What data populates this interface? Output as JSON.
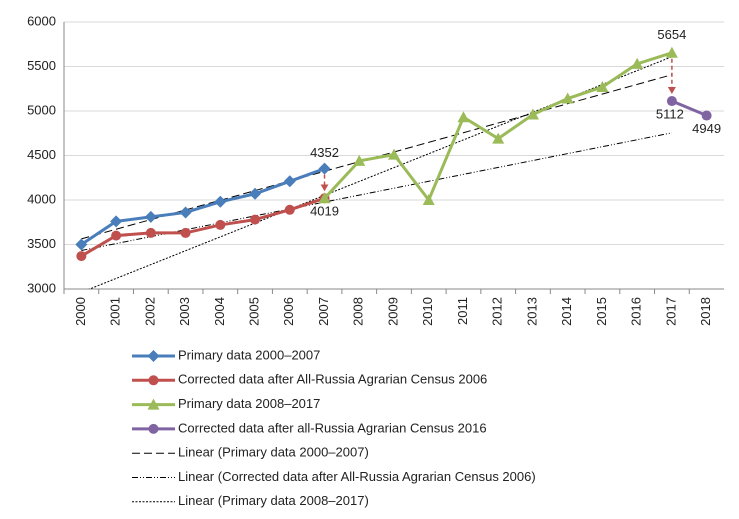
{
  "chart_data": {
    "type": "line",
    "categories": [
      "2000",
      "2001",
      "2002",
      "2003",
      "2004",
      "2005",
      "2006",
      "2007",
      "2008",
      "2009",
      "2010",
      "2011",
      "2012",
      "2013",
      "2014",
      "2015",
      "2016",
      "2017",
      "2018"
    ],
    "series": [
      {
        "name": "Primary data 2000–2007",
        "color": "#4a7ebb",
        "marker": "diamond",
        "values": [
          3500,
          3760,
          3810,
          3860,
          3980,
          4070,
          4210,
          4352,
          null,
          null,
          null,
          null,
          null,
          null,
          null,
          null,
          null,
          null,
          null
        ]
      },
      {
        "name": "Corrected data after All-Russia Agrarian Census 2006",
        "color": "#c0504d",
        "marker": "circle",
        "values": [
          3370,
          3600,
          3630,
          3630,
          3720,
          3780,
          3890,
          4019,
          null,
          null,
          null,
          null,
          null,
          null,
          null,
          null,
          null,
          null,
          null
        ]
      },
      {
        "name": "Primary data 2008–2017",
        "color": "#9bbb59",
        "marker": "triangle",
        "values": [
          null,
          null,
          null,
          null,
          null,
          null,
          null,
          4019,
          4440,
          4510,
          4000,
          4930,
          4690,
          4960,
          5140,
          5270,
          5530,
          5654,
          null
        ]
      },
      {
        "name": "Corrected data after all-Russia Agrarian Census 2016",
        "color": "#8064a2",
        "marker": "circle",
        "values": [
          null,
          null,
          null,
          null,
          null,
          null,
          null,
          null,
          null,
          null,
          null,
          null,
          null,
          null,
          null,
          null,
          null,
          5112,
          4949
        ]
      }
    ],
    "trendlines": [
      {
        "name": "Linear  (Primary data 2000–2007)",
        "of": 0,
        "dash": "8,4"
      },
      {
        "name": "Linear  (Corrected data after All-Russia Agrarian Census 2006)",
        "of": 1,
        "dash": "6,2,1,2,1,2"
      },
      {
        "name": "Linear  (Primary data 2008–2017)",
        "of": 2,
        "dash": "2,1.5"
      }
    ],
    "ylim": [
      3000,
      6000
    ],
    "yticks": [
      3000,
      3500,
      4000,
      4500,
      5000,
      5500,
      6000
    ],
    "grid": true
  }
}
